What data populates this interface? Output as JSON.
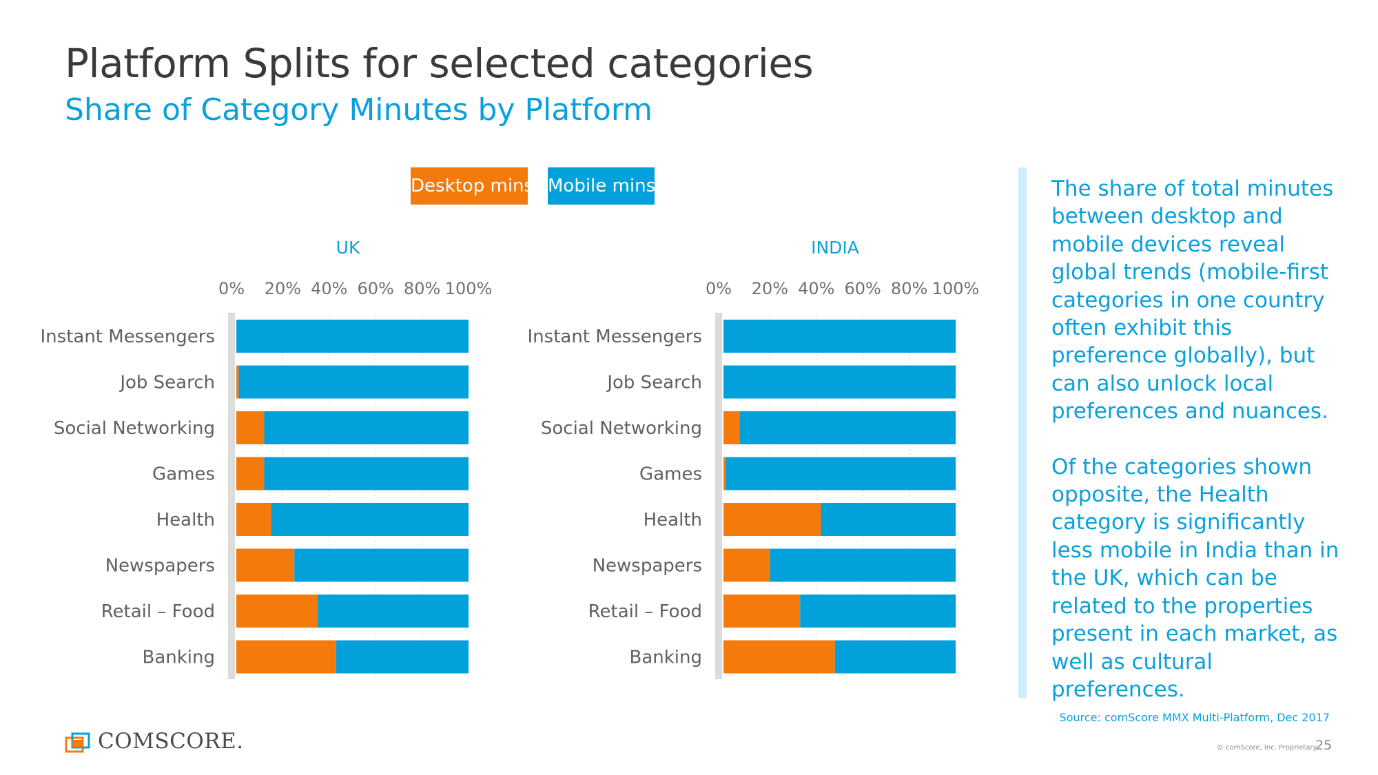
{
  "title": "Platform Splits for selected categories",
  "subtitle": "Share of Category Minutes by Platform",
  "legend": {
    "desktop": "Desktop mins",
    "mobile": "Mobile mins"
  },
  "colors": {
    "desktop": "#f47a0c",
    "mobile": "#03a1dc",
    "accent": "#0aa0dc"
  },
  "side_text": {
    "p1": "The share of total minutes between desktop and mobile devices reveal global trends (mobile-first categories in one country often exhibit this preference globally), but can also unlock local preferences and nuances.",
    "p2": "Of the categories shown opposite, the Health category is significantly less mobile in India than in the UK, which can be related to the properties present in each market, as well as cultural preferences."
  },
  "source": "Source: comScore MMX Multi-Platform, Dec 2017",
  "copyright": "© comScore, Inc. Proprietary.",
  "page_number": "25",
  "logo": {
    "text": "COMSCORE.",
    "icon": "comscore-logo-icon"
  },
  "chart_data": [
    {
      "type": "bar",
      "stacked": true,
      "orientation": "horizontal",
      "title": "UK",
      "categories": [
        "Instant Messengers",
        "Job Search",
        "Social Networking",
        "Games",
        "Health",
        "Newspapers",
        "Retail – Food",
        "Banking"
      ],
      "x_ticks": [
        "0%",
        "20%",
        "40%",
        "60%",
        "80%",
        "100%"
      ],
      "xlim": [
        0,
        100
      ],
      "series": [
        {
          "name": "Desktop mins",
          "values": [
            0,
            1,
            12,
            12,
            15,
            25,
            35,
            43
          ]
        },
        {
          "name": "Mobile mins",
          "values": [
            100,
            99,
            88,
            88,
            85,
            75,
            65,
            57
          ]
        }
      ]
    },
    {
      "type": "bar",
      "stacked": true,
      "orientation": "horizontal",
      "title": "INDIA",
      "categories": [
        "Instant Messengers",
        "Job Search",
        "Social Networking",
        "Games",
        "Health",
        "Newspapers",
        "Retail – Food",
        "Banking"
      ],
      "x_ticks": [
        "0%",
        "20%",
        "40%",
        "60%",
        "80%",
        "100%"
      ],
      "xlim": [
        0,
        100
      ],
      "series": [
        {
          "name": "Desktop mins",
          "values": [
            0,
            0,
            7,
            1,
            42,
            20,
            33,
            48
          ]
        },
        {
          "name": "Mobile mins",
          "values": [
            100,
            100,
            93,
            99,
            58,
            80,
            67,
            52
          ]
        }
      ]
    }
  ]
}
